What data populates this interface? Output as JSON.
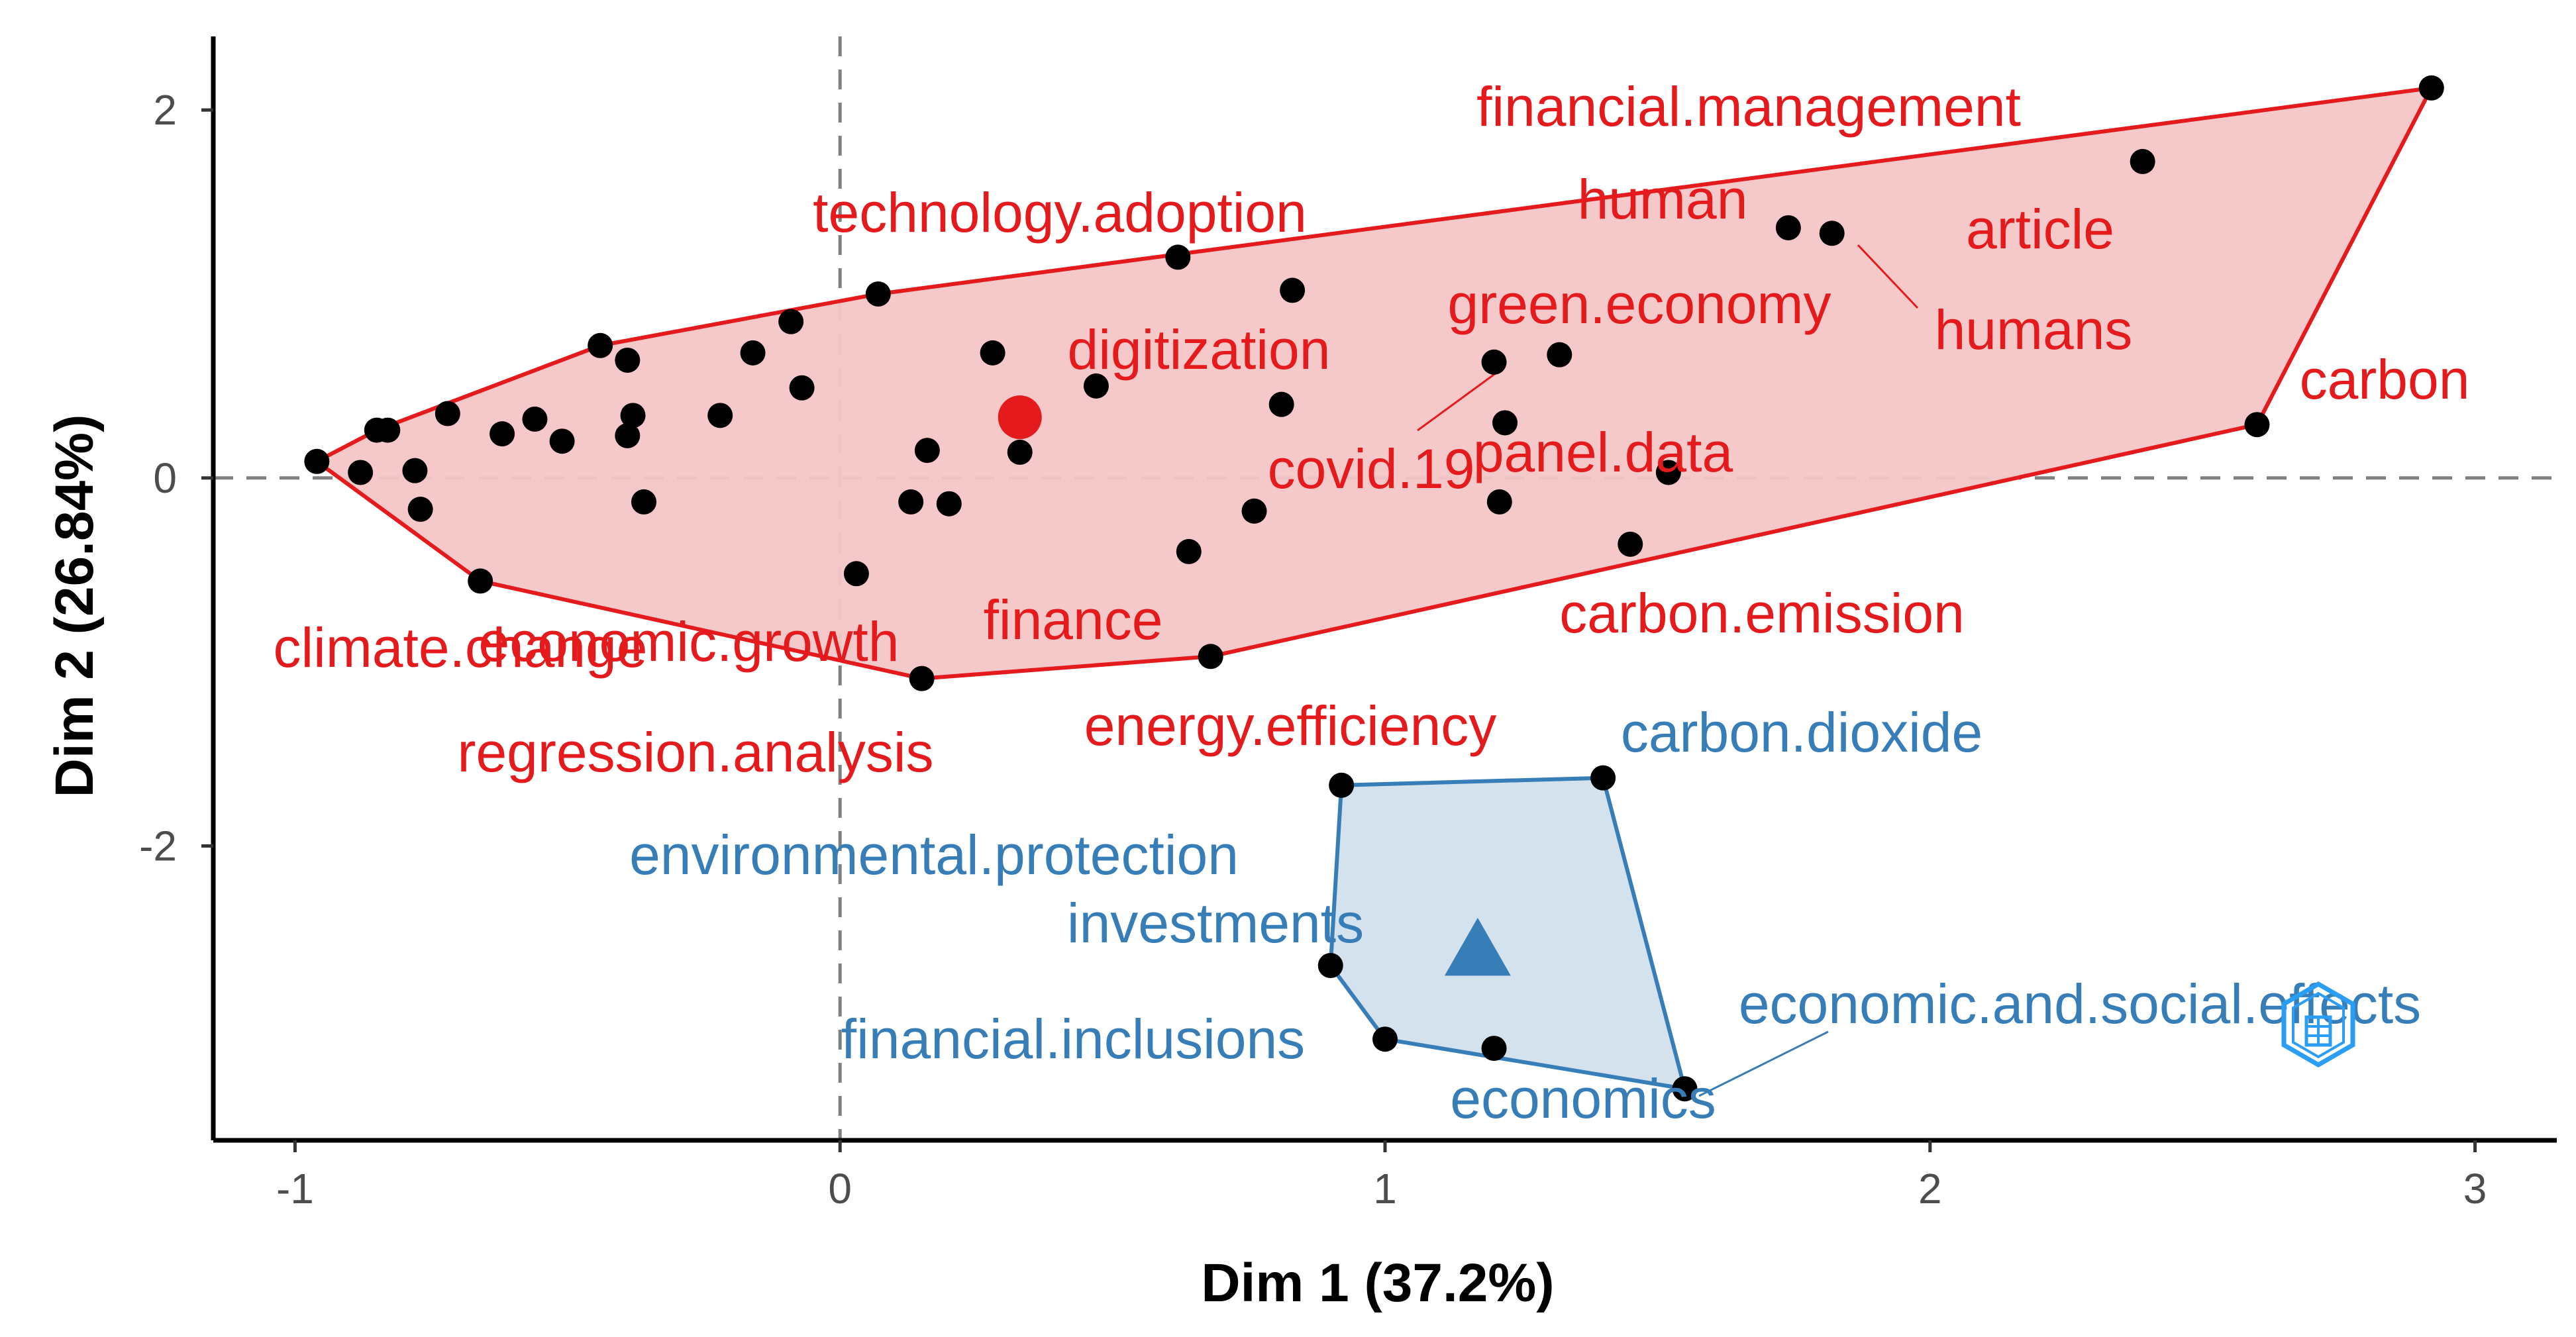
{
  "chart_data": {
    "type": "scatter",
    "subtype": "biplot-clusters",
    "xlabel": "Dim 1 (37.2%)",
    "ylabel": "Dim 2 (26.84%)",
    "xlim": [
      -1.15,
      3.15
    ],
    "ylim": [
      -3.6,
      2.4
    ],
    "x_ticks": [
      -1,
      0,
      1,
      2,
      3
    ],
    "x_tick_labels": [
      "-1",
      "0",
      "1",
      "2",
      "3"
    ],
    "y_ticks": [
      -2,
      0,
      2
    ],
    "y_tick_labels": [
      "-2",
      "0",
      "2"
    ],
    "reference_lines": {
      "x": 0,
      "y": 0,
      "style": "dashed"
    },
    "clusters": [
      {
        "name": "cluster-1",
        "color": "#e41a1c",
        "fill": "#f4c6c6",
        "centroid": {
          "x": 0.33,
          "y": 0.33,
          "marker": "circle"
        },
        "points": [
          [
            -0.96,
            0.09
          ],
          [
            -0.88,
            0.03
          ],
          [
            -0.85,
            0.26
          ],
          [
            -0.83,
            0.26
          ],
          [
            -0.78,
            0.04
          ],
          [
            -0.77,
            -0.17
          ],
          [
            -0.72,
            0.35
          ],
          [
            -0.66,
            -0.56
          ],
          [
            -0.62,
            0.24
          ],
          [
            -0.56,
            0.32
          ],
          [
            -0.51,
            0.2
          ],
          [
            -0.44,
            0.72
          ],
          [
            -0.39,
            0.64
          ],
          [
            -0.39,
            0.23
          ],
          [
            -0.38,
            0.34
          ],
          [
            -0.36,
            -0.13
          ],
          [
            -0.22,
            0.34
          ],
          [
            -0.16,
            0.68
          ],
          [
            -0.09,
            0.85
          ],
          [
            -0.07,
            0.49
          ],
          [
            0.03,
            -0.52
          ],
          [
            0.07,
            1.0
          ],
          [
            0.13,
            -0.13
          ],
          [
            0.15,
            -1.09
          ],
          [
            0.16,
            0.15
          ],
          [
            0.2,
            -0.14
          ],
          [
            0.28,
            0.68
          ],
          [
            0.33,
            0.14
          ],
          [
            0.47,
            0.5
          ],
          [
            0.62,
            1.2
          ],
          [
            0.64,
            -0.4
          ],
          [
            0.68,
            -0.97
          ],
          [
            0.76,
            -0.18
          ],
          [
            0.81,
            0.4
          ],
          [
            0.83,
            1.02
          ],
          [
            1.2,
            0.63
          ],
          [
            1.21,
            -0.13
          ],
          [
            1.22,
            0.3
          ],
          [
            1.32,
            0.67
          ],
          [
            1.45,
            -0.36
          ],
          [
            1.52,
            0.03
          ],
          [
            1.74,
            1.36
          ],
          [
            1.82,
            1.33
          ],
          [
            2.39,
            1.72
          ],
          [
            2.6,
            0.29
          ],
          [
            2.92,
            2.12
          ]
        ],
        "labels": [
          {
            "text": "financial.management",
            "x": 2.92,
            "y": 2.12
          },
          {
            "text": "human",
            "x": 1.74,
            "y": 1.36
          },
          {
            "text": "article",
            "x": 2.39,
            "y": 1.72
          },
          {
            "text": "technology.adoption",
            "x": 0.62,
            "y": 1.2
          },
          {
            "text": "green.economy",
            "x": 1.32,
            "y": 0.67
          },
          {
            "text": "humans",
            "x": 1.82,
            "y": 1.33
          },
          {
            "text": "digitization",
            "x": 0.47,
            "y": 0.5
          },
          {
            "text": "carbon",
            "x": 2.6,
            "y": 0.29
          },
          {
            "text": "covid.19",
            "x": 1.2,
            "y": 0.63
          },
          {
            "text": "panel.data",
            "x": 1.22,
            "y": 0.3
          },
          {
            "text": "finance",
            "x": 0.28,
            "y": 0.68
          },
          {
            "text": "carbon.emission",
            "x": 1.45,
            "y": -0.36
          },
          {
            "text": "climate.change",
            "x": -0.96,
            "y": 0.09
          },
          {
            "text": "economic.growth",
            "x": -0.66,
            "y": -0.56
          },
          {
            "text": "energy.efficiency",
            "x": 0.68,
            "y": -0.97
          },
          {
            "text": "regression.analysis",
            "x": 0.15,
            "y": -1.09
          }
        ]
      },
      {
        "name": "cluster-2",
        "color": "#377eb8",
        "fill": "#d2e0ec",
        "centroid": {
          "x": 1.17,
          "y": -2.57,
          "marker": "triangle"
        },
        "points": [
          [
            0.92,
            -1.67
          ],
          [
            1.4,
            -1.63
          ],
          [
            0.9,
            -2.65
          ],
          [
            1.0,
            -3.05
          ],
          [
            1.2,
            -3.1
          ],
          [
            1.55,
            -3.32
          ]
        ],
        "labels": [
          {
            "text": "carbon.dioxide",
            "x": 1.4,
            "y": -1.63
          },
          {
            "text": "environmental.protection",
            "x": 0.92,
            "y": -1.67
          },
          {
            "text": "investments",
            "x": 0.9,
            "y": -2.65
          },
          {
            "text": "financial.inclusions",
            "x": 1.0,
            "y": -3.05
          },
          {
            "text": "economic.and.social.effects",
            "x": 1.55,
            "y": -3.32
          },
          {
            "text": "economics",
            "x": 1.2,
            "y": -3.1
          }
        ]
      }
    ]
  }
}
